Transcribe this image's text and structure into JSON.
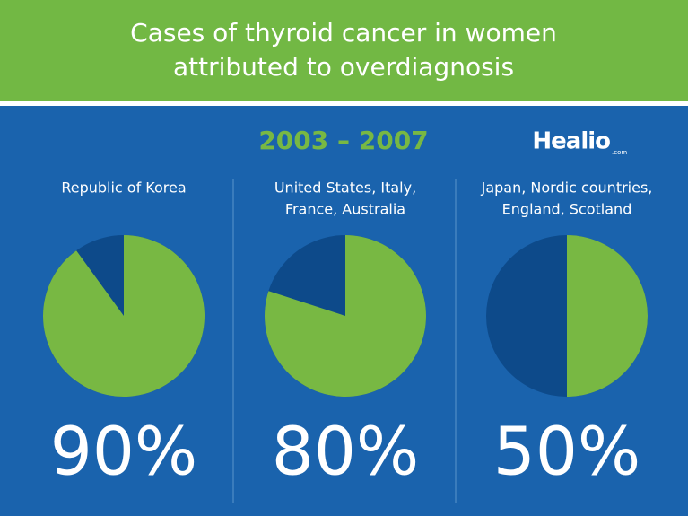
{
  "header": {
    "title": [
      "Cases of thyroid cancer in women",
      "attributed to overdiagnosis"
    ],
    "period": "2003 – 2007",
    "logo": "Healio",
    "logo_suffix": ".com"
  },
  "chart_data": [
    {
      "type": "pie",
      "title": [
        "Republic of Korea"
      ],
      "values": [
        90
      ],
      "value_labels": [
        "90%"
      ],
      "color": "#78b843",
      "rest_color": "#0d4a8a"
    },
    {
      "type": "pie",
      "title": [
        "United States, Italy,",
        "France, Australia"
      ],
      "values": [
        80
      ],
      "value_labels": [
        "80%"
      ],
      "color": "#78b843",
      "rest_color": "#0d4a8a"
    },
    {
      "type": "pie",
      "title": [
        "Japan, Nordic countries,",
        "England, Scotland"
      ],
      "values": [
        50
      ],
      "value_labels": [
        "50%"
      ],
      "color": "#78b843",
      "rest_color": "#0d4a8a"
    }
  ]
}
